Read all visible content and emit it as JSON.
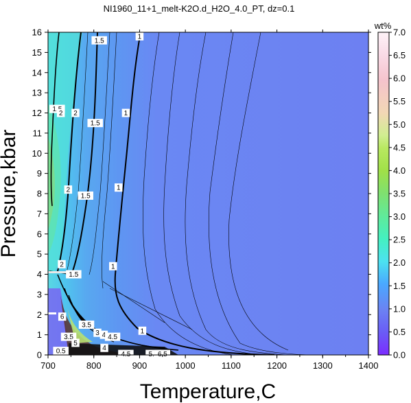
{
  "chart_data": {
    "type": "heatmap",
    "title": "NI1960_11+1_melt-K2O.d_H2O_4.0_PT, dz=0.1",
    "xlabel": "Temperature,C",
    "ylabel": "Pressure,kbar",
    "xlim": [
      700,
      1400
    ],
    "ylim": [
      0,
      16
    ],
    "xticks": [
      700,
      800,
      900,
      1000,
      1100,
      1200,
      1300,
      1400
    ],
    "yticks": [
      0,
      1,
      2,
      3,
      4,
      5,
      6,
      7,
      8,
      9,
      10,
      11,
      12,
      13,
      14,
      15,
      16
    ],
    "colorbar": {
      "label": "wt%",
      "range": [
        0.0,
        7.0
      ],
      "ticks": [
        "0.0",
        "0.5",
        "1.0",
        "1.5",
        "2.0",
        "2.5",
        "3.0",
        "3.5",
        "4.0",
        "4.5",
        "5.0",
        "5.5",
        "6.0",
        "6.5",
        "7.0"
      ]
    },
    "contour_labels": [
      {
        "text": "1",
        "x": 900,
        "y": 15.8
      },
      {
        "text": "1.5",
        "x": 812,
        "y": 15.6
      },
      {
        "text": "1.5",
        "x": 720,
        "y": 12.2
      },
      {
        "text": "2",
        "x": 728,
        "y": 12.0
      },
      {
        "text": "2",
        "x": 760,
        "y": 12.0
      },
      {
        "text": "1.5",
        "x": 803,
        "y": 11.5
      },
      {
        "text": "1",
        "x": 870,
        "y": 12.0
      },
      {
        "text": "2",
        "x": 744,
        "y": 8.2
      },
      {
        "text": "1.5",
        "x": 782,
        "y": 7.9
      },
      {
        "text": "1",
        "x": 854,
        "y": 8.3
      },
      {
        "text": "1",
        "x": 842,
        "y": 4.4
      },
      {
        "text": "2",
        "x": 730,
        "y": 4.5
      },
      {
        "text": "1.5",
        "x": 756,
        "y": 4.0
      },
      {
        "text": "6",
        "x": 731,
        "y": 1.9
      },
      {
        "text": "3.5",
        "x": 784,
        "y": 1.5
      },
      {
        "text": "3",
        "x": 808,
        "y": 1.1
      },
      {
        "text": "4",
        "x": 822,
        "y": 1.0
      },
      {
        "text": "4.5",
        "x": 841,
        "y": 0.9
      },
      {
        "text": "1",
        "x": 906,
        "y": 1.2
      },
      {
        "text": "3.5",
        "x": 745,
        "y": 0.9
      },
      {
        "text": "5",
        "x": 760,
        "y": 0.6
      },
      {
        "text": "4",
        "x": 823,
        "y": 0.35
      },
      {
        "text": "0.5",
        "x": 728,
        "y": 0.2
      },
      {
        "text": "4.5",
        "x": 870,
        "y": 0.05
      },
      {
        "text": "5.5",
        "x": 930,
        "y": 0.05
      },
      {
        "text": "6.5",
        "x": 950,
        "y": 0.05
      }
    ]
  }
}
